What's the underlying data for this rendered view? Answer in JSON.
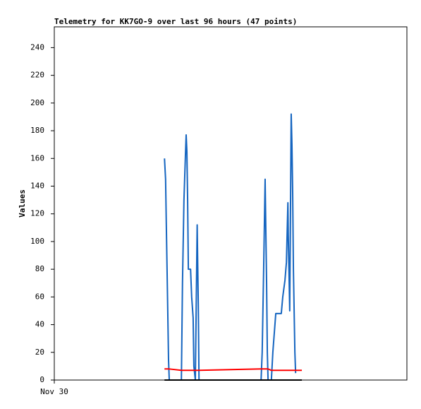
{
  "chart_data": {
    "type": "line",
    "title": "Telemetry for KK7GO-9 over last 96 hours (47 points)",
    "y_label": "Values",
    "x": [
      30.0,
      30.3,
      30.5,
      30.7,
      30.9,
      31.1,
      31.3,
      34.6,
      34.9,
      35.3,
      35.7,
      35.9,
      36.1,
      36.3,
      36.5,
      37.1,
      37.4,
      37.8,
      38.0,
      38.4,
      38.9,
      39.2,
      39.4,
      56.3,
      56.6,
      57.0,
      57.4,
      57.8,
      58.0,
      58.2,
      59.1,
      59.5,
      60.3,
      61.8,
      62.2,
      62.8,
      63.2,
      63.6,
      63.7,
      64.1,
      64.5,
      64.7,
      64.9,
      65.1,
      65.5,
      65.7,
      67.4
    ],
    "series": [
      {
        "color": "#1565c0",
        "values": [
          160,
          145,
          112,
          80,
          48,
          15,
          0,
          0,
          70,
          130,
          162,
          177,
          165,
          130,
          80,
          80,
          60,
          45,
          10,
          0,
          112,
          55,
          0,
          0,
          20,
          80,
          145,
          70,
          20,
          0,
          0,
          20,
          48,
          48,
          60,
          72,
          85,
          128,
          105,
          50,
          192,
          170,
          135,
          80,
          20,
          5,
          null
        ]
      },
      {
        "color": "#ff0000",
        "values": [
          8,
          8,
          8,
          8,
          8,
          8,
          8,
          7,
          7,
          7,
          7,
          7,
          7,
          7,
          7,
          7,
          7,
          7,
          7,
          7,
          7,
          7,
          7,
          8,
          8,
          8,
          8,
          8,
          8,
          8,
          7,
          7,
          7,
          7,
          7,
          7,
          7,
          7,
          7,
          7,
          7,
          7,
          7,
          7,
          7,
          7,
          7
        ]
      },
      {
        "color": "#000000",
        "values": [
          0,
          0,
          0,
          0,
          0,
          0,
          0,
          0,
          0,
          0,
          0,
          0,
          0,
          0,
          0,
          0,
          0,
          0,
          0,
          0,
          0,
          0,
          0,
          0,
          0,
          0,
          0,
          0,
          0,
          0,
          0,
          0,
          0,
          0,
          0,
          0,
          0,
          0,
          0,
          0,
          0,
          0,
          0,
          0,
          0,
          0,
          0
        ]
      }
    ],
    "xlim": [
      0,
      96
    ],
    "xticks": [
      {
        "value": 0,
        "label": "Nov 30"
      }
    ],
    "ylim": [
      0,
      255
    ],
    "yticks": [
      0,
      20,
      40,
      60,
      80,
      100,
      120,
      140,
      160,
      180,
      200,
      220,
      240
    ],
    "grid": false
  }
}
